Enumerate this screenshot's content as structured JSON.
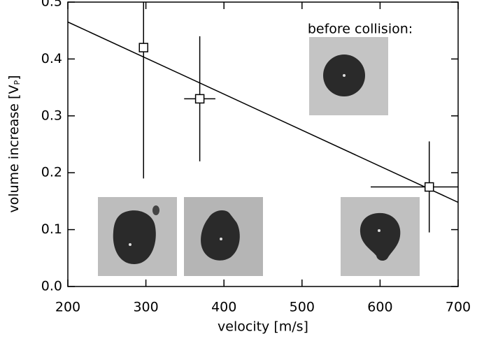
{
  "chart_data": {
    "type": "scatter",
    "xlabel": "velocity [m/s]",
    "ylabel": "volume increase [V",
    "ylabel_sub": "P",
    "ylabel_end": "]",
    "annotation": "before collision:",
    "x": [
      297,
      369,
      663
    ],
    "values": [
      0.42,
      0.33,
      0.175
    ],
    "x_err": [
      0,
      20,
      75
    ],
    "y_err": [
      0.23,
      0.11,
      0.08
    ],
    "fit": {
      "x": [
        200,
        700
      ],
      "y": [
        0.465,
        0.148
      ]
    },
    "color": "#000000",
    "xlim": [
      200,
      700
    ],
    "ylim": [
      0,
      0.5
    ],
    "xticks": [
      200,
      300,
      400,
      500,
      600,
      700
    ],
    "yticks": [
      {
        "value": 0,
        "label": "0.0"
      },
      0.1,
      0.2,
      0.3,
      0.4,
      0.5
    ]
  }
}
